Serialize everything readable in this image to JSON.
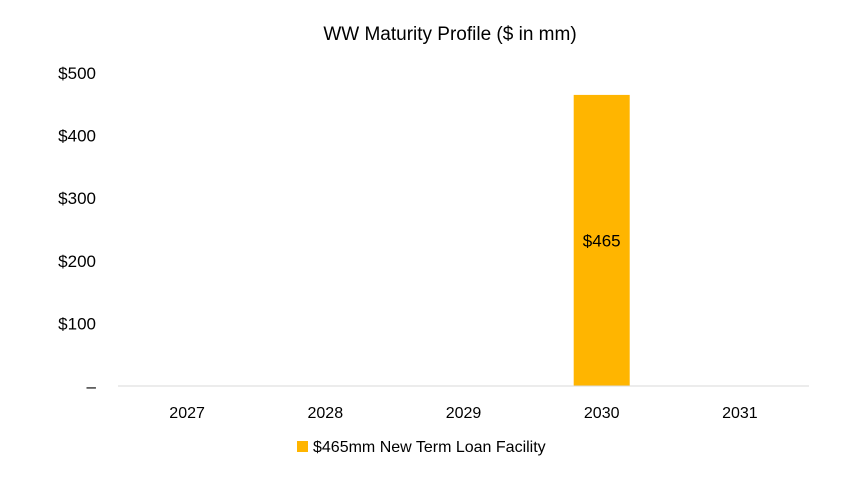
{
  "chart_data": {
    "type": "bar",
    "title": "WW Maturity Profile ($ in mm)",
    "categories": [
      "2027",
      "2028",
      "2029",
      "2030",
      "2031"
    ],
    "series": [
      {
        "name": "$465mm New Term Loan Facility",
        "values": [
          0,
          0,
          0,
          465,
          0
        ],
        "color": "#FFB500",
        "data_labels": [
          "",
          "",
          "",
          "$465",
          ""
        ]
      }
    ],
    "ylim": [
      0,
      500
    ],
    "yticks": [
      0,
      100,
      200,
      300,
      400,
      500
    ],
    "ytick_labels": [
      "–",
      "$100",
      "$200",
      "$300",
      "$400",
      "$500"
    ],
    "xlabel": "",
    "ylabel": "",
    "grid": false,
    "legend": "bottom-center"
  }
}
